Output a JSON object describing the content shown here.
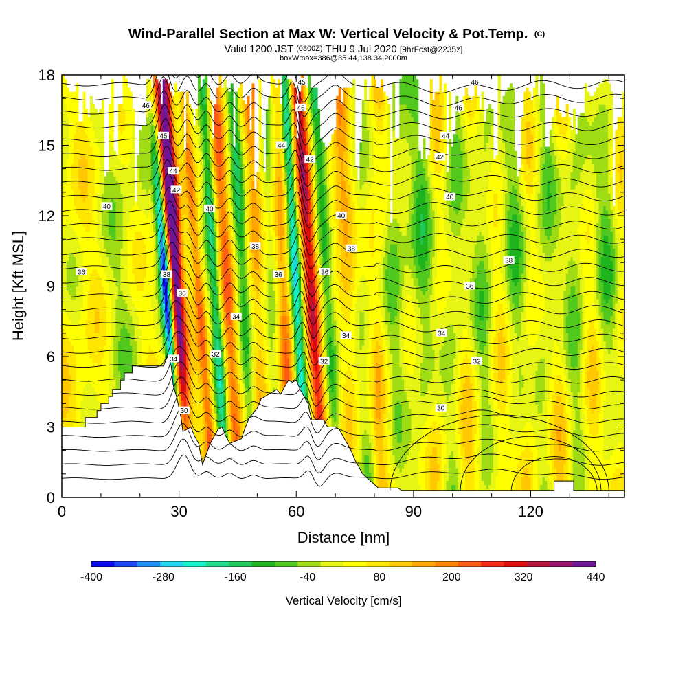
{
  "chart_data": {
    "type": "heatmap",
    "title": "Wind-Parallel Section at Max W: Vertical Velocity & Pot.Temp.",
    "title_mark": "(C)",
    "subtitle_parts": [
      "Valid 1200 JST",
      "(0300Z)",
      "THU 9 Jul 2020",
      "[9hrFcst@2235z]"
    ],
    "subtitle2": "boxWmax=386@35.44,138.34,2000m",
    "xlabel": "Distance [nm]",
    "ylabel": "Height [Kft MSL]",
    "xlim": [
      0,
      144
    ],
    "ylim": [
      0,
      18
    ],
    "x_ticks": [
      "0",
      "30",
      "60",
      "90",
      "120"
    ],
    "y_ticks": [
      "0",
      "3",
      "6",
      "9",
      "12",
      "15",
      "18"
    ],
    "colorbar": {
      "label": "Vertical Velocity [cm/s]",
      "tick_labels": [
        "-400",
        "-280",
        "-160",
        "-40",
        "80",
        "200",
        "320",
        "440"
      ],
      "colors": [
        "#0a0af0",
        "#1a46f5",
        "#1e8cf5",
        "#1ed2f0",
        "#14f0c8",
        "#1edc8c",
        "#1ec85a",
        "#1eb41e",
        "#50c81e",
        "#a0dc14",
        "#e6f514",
        "#ffff00",
        "#ffe600",
        "#ffc800",
        "#ffa500",
        "#ff8200",
        "#ff5a14",
        "#f52814",
        "#dc0a0a",
        "#b4143c",
        "#96146e",
        "#6e1496"
      ]
    },
    "contour_labels": [
      {
        "x": 5,
        "y": 9.6,
        "value": "36"
      },
      {
        "x": 11.5,
        "y": 12.4,
        "value": "40"
      },
      {
        "x": 21.5,
        "y": 16.7,
        "value": "46"
      },
      {
        "x": 26,
        "y": 15.4,
        "value": "45"
      },
      {
        "x": 28.5,
        "y": 13.9,
        "value": "44"
      },
      {
        "x": 29.3,
        "y": 13.1,
        "value": "42"
      },
      {
        "x": 26.8,
        "y": 9.5,
        "value": "38"
      },
      {
        "x": 30.8,
        "y": 8.7,
        "value": "36"
      },
      {
        "x": 28.6,
        "y": 5.9,
        "value": "34"
      },
      {
        "x": 39.4,
        "y": 6.1,
        "value": "32"
      },
      {
        "x": 31.3,
        "y": 3.7,
        "value": "30"
      },
      {
        "x": 37.8,
        "y": 12.3,
        "value": "40"
      },
      {
        "x": 49.5,
        "y": 10.7,
        "value": "38"
      },
      {
        "x": 55.4,
        "y": 9.5,
        "value": "36"
      },
      {
        "x": 44.6,
        "y": 7.7,
        "value": "34"
      },
      {
        "x": 56.2,
        "y": 15.0,
        "value": "44"
      },
      {
        "x": 61.4,
        "y": 17.7,
        "value": "45"
      },
      {
        "x": 61.2,
        "y": 16.6,
        "value": "46"
      },
      {
        "x": 63.5,
        "y": 14.4,
        "value": "42"
      },
      {
        "x": 71.5,
        "y": 12.0,
        "value": "40"
      },
      {
        "x": 74.1,
        "y": 10.6,
        "value": "38"
      },
      {
        "x": 67.3,
        "y": 9.6,
        "value": "36"
      },
      {
        "x": 72.7,
        "y": 6.9,
        "value": "34"
      },
      {
        "x": 67.1,
        "y": 5.8,
        "value": "32"
      },
      {
        "x": 105.7,
        "y": 17.7,
        "value": "46"
      },
      {
        "x": 101.5,
        "y": 16.6,
        "value": "46"
      },
      {
        "x": 98.2,
        "y": 15.4,
        "value": "44"
      },
      {
        "x": 96.8,
        "y": 14.5,
        "value": "42"
      },
      {
        "x": 99.3,
        "y": 12.8,
        "value": "40"
      },
      {
        "x": 114.4,
        "y": 10.1,
        "value": "38"
      },
      {
        "x": 104.4,
        "y": 9.0,
        "value": "36"
      },
      {
        "x": 97.2,
        "y": 7.0,
        "value": "34"
      },
      {
        "x": 106.2,
        "y": 5.8,
        "value": "32"
      },
      {
        "x": 97.0,
        "y": 3.8,
        "value": "30"
      }
    ]
  }
}
